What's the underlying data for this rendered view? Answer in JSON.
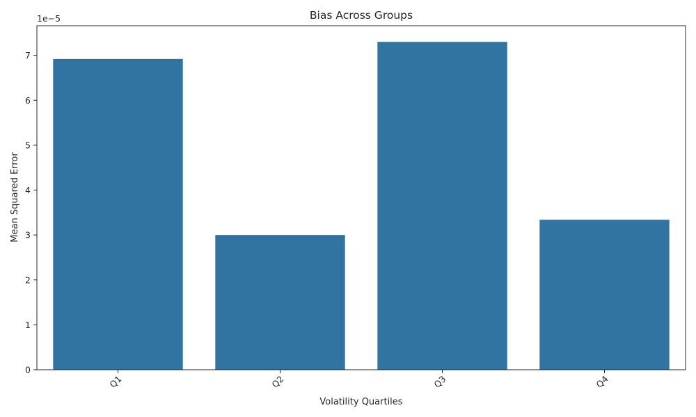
{
  "chart_data": {
    "type": "bar",
    "title": "Bias Across Groups",
    "xlabel": "Volatility Quartiles",
    "ylabel": "Mean Squared Error",
    "y_offset_label": "1e−5",
    "categories": [
      "Q1",
      "Q2",
      "Q3",
      "Q4"
    ],
    "values": [
      6.92e-05,
      3e-05,
      7.3e-05,
      3.34e-05
    ],
    "ylim": [
      0,
      7.66e-05
    ],
    "yticks": [
      0,
      1e-05,
      2e-05,
      3e-05,
      4e-05,
      5e-05,
      6e-05,
      7e-05
    ],
    "ytick_labels": [
      "0",
      "1",
      "2",
      "3",
      "4",
      "5",
      "6",
      "7"
    ],
    "bar_color": "#3274a1",
    "grid": false,
    "legend": "none"
  }
}
